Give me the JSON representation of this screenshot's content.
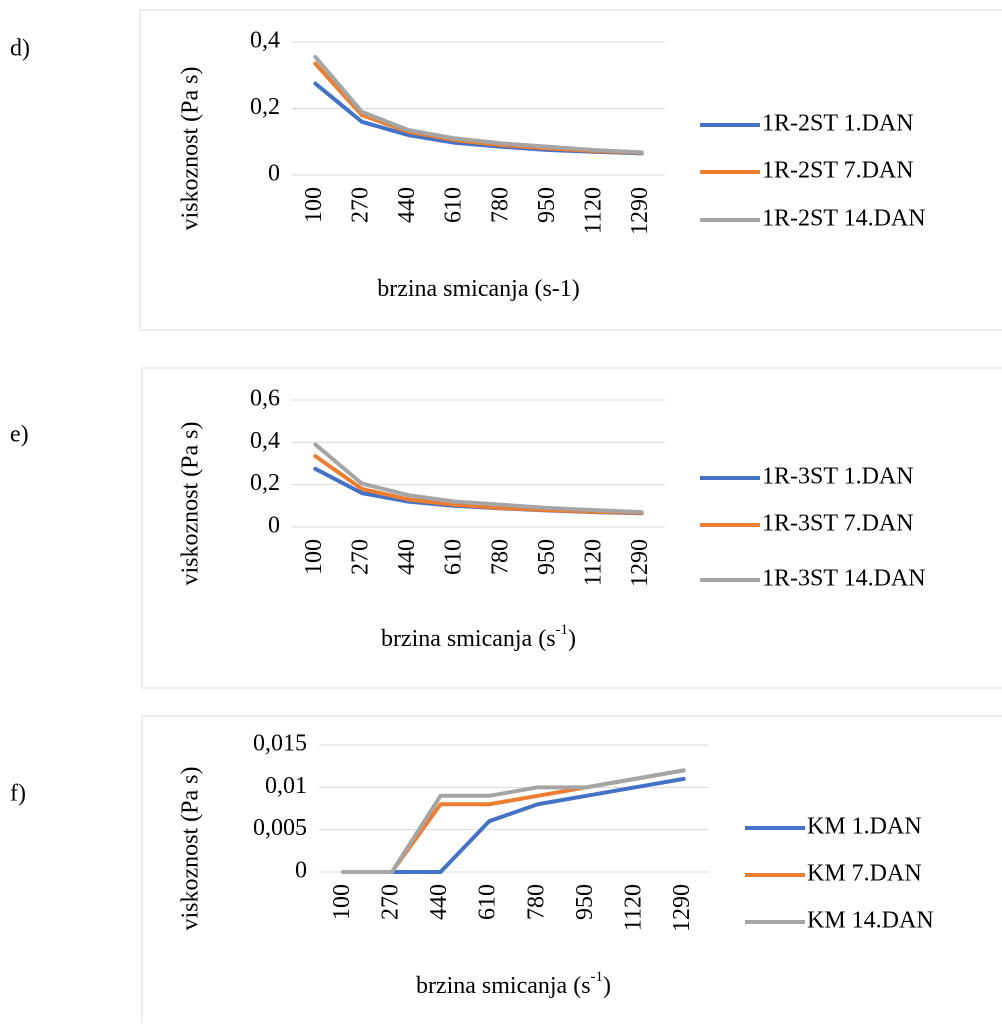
{
  "chart_data": [
    {
      "type": "line",
      "panel_label": "d)",
      "ylabel": "viskoznost (Pa s)",
      "xlabel": "brzina smicanja (s-1)",
      "categories": [
        "100",
        "270",
        "440",
        "610",
        "780",
        "950",
        "1120",
        "1290"
      ],
      "ylim": [
        0,
        0.4
      ],
      "yticks": [
        0,
        {
          "value": 0.2,
          "label": "0,2"
        },
        {
          "value": 0.4,
          "label": "0,4"
        }
      ],
      "grid": true,
      "legend": "right",
      "series": [
        {
          "name": "1R-2ST 1.DAN",
          "color": "#4472c4",
          "values": [
            0.275,
            0.16,
            0.12,
            0.097,
            0.085,
            0.075,
            0.07,
            0.065
          ]
        },
        {
          "name": "1R-2ST 7.DAN",
          "color": "#ed7d31",
          "values": [
            0.335,
            0.18,
            0.13,
            0.105,
            0.09,
            0.08,
            0.072,
            0.067
          ]
        },
        {
          "name": "1R-2ST 14.DAN",
          "color": "#a5a5a5",
          "values": [
            0.355,
            0.19,
            0.135,
            0.11,
            0.095,
            0.085,
            0.075,
            0.068
          ]
        }
      ]
    },
    {
      "type": "line",
      "panel_label": "e)",
      "ylabel": "viskoznost (Pa s)",
      "xlabel": "brzina smicanja (s",
      "xlabel_sup": "-1",
      "xlabel_end": ")",
      "categories": [
        "100",
        "270",
        "440",
        "610",
        "780",
        "950",
        "1120",
        "1290"
      ],
      "ylim": [
        0,
        0.6
      ],
      "yticks": [
        0,
        {
          "value": 0.2,
          "label": "0,2"
        },
        {
          "value": 0.4,
          "label": "0,4"
        },
        {
          "value": 0.6,
          "label": "0,6"
        }
      ],
      "grid": true,
      "legend": "right",
      "series": [
        {
          "name": "1R-3ST 1.DAN",
          "color": "#4472c4",
          "values": [
            0.275,
            0.16,
            0.12,
            0.1,
            0.088,
            0.078,
            0.07,
            0.065
          ]
        },
        {
          "name": "1R-3ST 7.DAN",
          "color": "#ed7d31",
          "values": [
            0.335,
            0.18,
            0.13,
            0.105,
            0.09,
            0.08,
            0.072,
            0.067
          ]
        },
        {
          "name": "1R-3ST 14.DAN",
          "color": "#a5a5a5",
          "values": [
            0.39,
            0.205,
            0.15,
            0.12,
            0.105,
            0.09,
            0.08,
            0.07
          ]
        }
      ]
    },
    {
      "type": "line",
      "panel_label": "f)",
      "ylabel": "viskoznost (Pa s)",
      "xlabel": "brzina smicanja (s",
      "xlabel_sup": "-1",
      "xlabel_end": ")",
      "categories": [
        "100",
        "270",
        "440",
        "610",
        "780",
        "950",
        "1120",
        "1290"
      ],
      "ylim": [
        0,
        0.015
      ],
      "yticks": [
        0,
        {
          "value": 0.005,
          "label": "0,005"
        },
        {
          "value": 0.01,
          "label": "0,01"
        },
        {
          "value": 0.015,
          "label": "0,015"
        }
      ],
      "grid": true,
      "legend": "right",
      "series": [
        {
          "name": "KM 1.DAN",
          "color": "#4472c4",
          "values": [
            0,
            0,
            0,
            0.006,
            0.008,
            0.009,
            0.01,
            0.011
          ]
        },
        {
          "name": "KM 7.DAN",
          "color": "#ed7d31",
          "values": [
            0,
            0,
            0.008,
            0.008,
            0.009,
            0.01,
            0.011,
            0.012
          ]
        },
        {
          "name": "KM 14.DAN",
          "color": "#a5a5a5",
          "values": [
            0,
            0,
            0.009,
            0.009,
            0.01,
            0.01,
            0.011,
            0.012
          ]
        }
      ]
    }
  ]
}
